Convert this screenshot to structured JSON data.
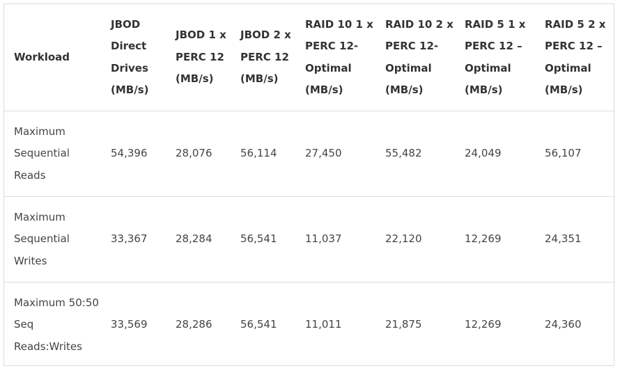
{
  "table": {
    "headers": [
      "Workload",
      "JBOD Direct Drives (MB/s)",
      "JBOD 1 x PERC 12 (MB/s)",
      "JBOD 2 x PERC 12 (MB/s)",
      "RAID 10 1 x PERC 12-Optimal (MB/s)",
      "RAID 10 2 x PERC 12-Optimal (MB/s)",
      "RAID 5 1 x PERC 12 – Optimal (MB/s)",
      "RAID 5 2 x PERC 12 – Optimal (MB/s)"
    ],
    "rows": [
      [
        "Maximum Sequential Reads",
        "54,396",
        "28,076",
        "56,114",
        "27,450",
        "55,482",
        "24,049",
        "56,107"
      ],
      [
        "Maximum Sequential Writes",
        "33,367",
        "28,284",
        "56,541",
        "11,037",
        "22,120",
        "12,269",
        "24,351"
      ],
      [
        "Maximum 50:50 Seq Reads:Writes",
        "33,569",
        "28,286",
        "56,541",
        "11,011",
        "21,875",
        "12,269",
        "24,360"
      ]
    ]
  }
}
